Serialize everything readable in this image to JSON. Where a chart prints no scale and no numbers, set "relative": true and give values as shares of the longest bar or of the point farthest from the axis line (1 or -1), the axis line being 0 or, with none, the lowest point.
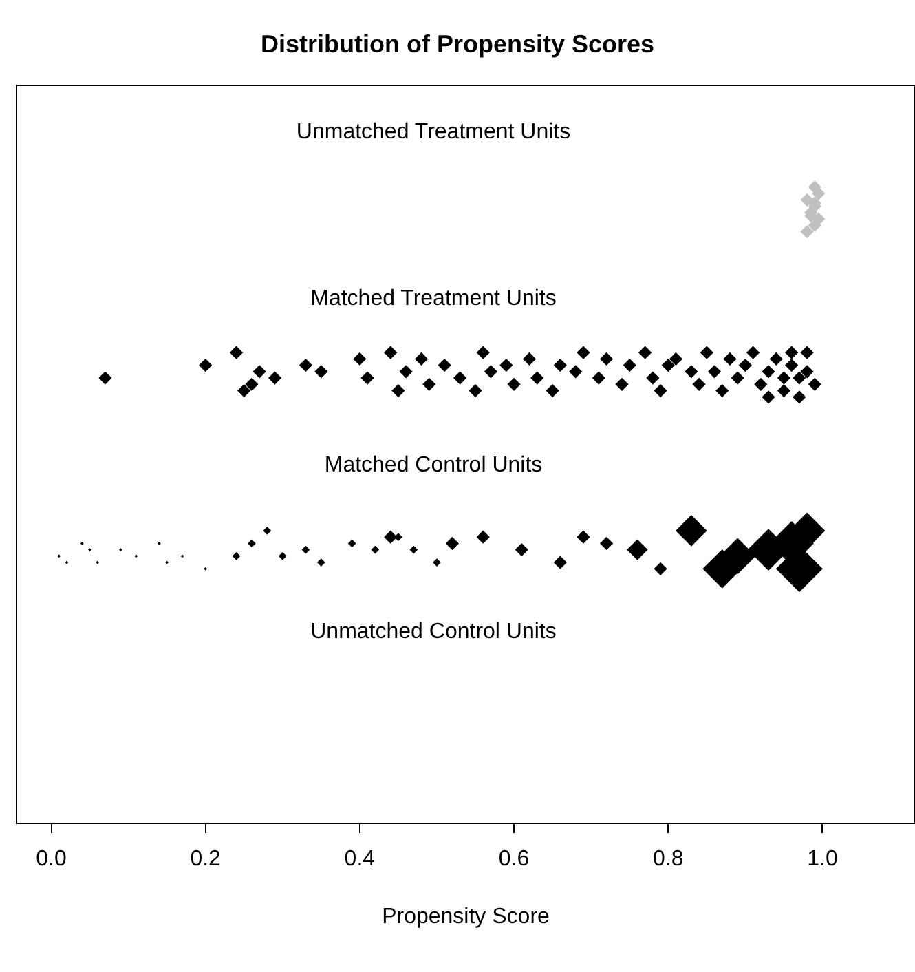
{
  "chart_data": {
    "type": "bubble",
    "title": "Distribution of Propensity Scores",
    "xlabel": "Propensity Score",
    "relative": true,
    "marker": "diamond",
    "grid": false,
    "xlim": [
      -0.045,
      1.12
    ],
    "xticks": [
      {
        "value": 0,
        "label": "0.0"
      },
      {
        "value": 0.2,
        "label": "0.2"
      },
      {
        "value": 0.4,
        "label": "0.4"
      },
      {
        "value": 0.6,
        "label": "0.6"
      },
      {
        "value": 0.8,
        "label": "0.8"
      },
      {
        "value": 1,
        "label": "1.0"
      }
    ],
    "annotations": [
      "Unmatched Treatment Units",
      "Matched Treatment Units",
      "Matched Control Units",
      "Unmatched Control Units"
    ],
    "series": [
      {
        "color": "#c0c0c0",
        "x": [
          0.98,
          0.99,
          0.995,
          0.985,
          0.99,
          0.98,
          0.995,
          0.99,
          0.985,
          0.99
        ],
        "values": [
          0.93,
          0.94,
          0.95,
          0.96,
          0.97,
          0.98,
          0.99,
          1.0,
          0.955,
          0.975
        ],
        "sizes": [
          0.08,
          0.08,
          0.08,
          0.08,
          0.08,
          0.08,
          0.08,
          0.08,
          0.08,
          0.08
        ]
      },
      {
        "color": "#000000",
        "x": [
          0.07,
          0.2,
          0.24,
          0.26,
          0.27,
          0.25,
          0.29,
          0.33,
          0.35,
          0.4,
          0.41,
          0.44,
          0.45,
          0.46,
          0.48,
          0.49,
          0.51,
          0.53,
          0.55,
          0.56,
          0.57,
          0.59,
          0.6,
          0.62,
          0.63,
          0.65,
          0.66,
          0.68,
          0.69,
          0.71,
          0.72,
          0.74,
          0.75,
          0.77,
          0.78,
          0.79,
          0.8,
          0.81,
          0.83,
          0.84,
          0.85,
          0.86,
          0.87,
          0.88,
          0.89,
          0.9,
          0.91,
          0.92,
          0.93,
          0.94,
          0.95,
          0.96,
          0.97,
          0.98,
          0.99,
          0.97,
          0.95,
          0.93,
          0.98,
          0.96
        ],
        "values": [
          0.7,
          0.72,
          0.74,
          0.69,
          0.71,
          0.68,
          0.7,
          0.72,
          0.71,
          0.73,
          0.7,
          0.74,
          0.68,
          0.71,
          0.73,
          0.69,
          0.72,
          0.7,
          0.68,
          0.74,
          0.71,
          0.72,
          0.69,
          0.73,
          0.7,
          0.68,
          0.72,
          0.71,
          0.74,
          0.7,
          0.73,
          0.69,
          0.72,
          0.74,
          0.7,
          0.68,
          0.72,
          0.73,
          0.71,
          0.69,
          0.74,
          0.71,
          0.68,
          0.73,
          0.7,
          0.72,
          0.74,
          0.69,
          0.71,
          0.73,
          0.68,
          0.72,
          0.7,
          0.74,
          0.69,
          0.67,
          0.7,
          0.67,
          0.71,
          0.74
        ],
        "sizes": [
          0.08,
          0.08,
          0.08,
          0.08,
          0.08,
          0.08,
          0.08,
          0.08,
          0.08,
          0.08,
          0.08,
          0.08,
          0.08,
          0.08,
          0.08,
          0.08,
          0.08,
          0.08,
          0.08,
          0.08,
          0.08,
          0.08,
          0.08,
          0.08,
          0.08,
          0.08,
          0.08,
          0.08,
          0.08,
          0.08,
          0.08,
          0.08,
          0.08,
          0.08,
          0.08,
          0.08,
          0.08,
          0.08,
          0.08,
          0.08,
          0.08,
          0.08,
          0.08,
          0.08,
          0.08,
          0.08,
          0.08,
          0.08,
          0.08,
          0.08,
          0.08,
          0.08,
          0.08,
          0.08,
          0.08,
          0.08,
          0.08,
          0.08,
          0.08,
          0.08
        ]
      },
      {
        "color": "#000000",
        "x": [
          0.01,
          0.02,
          0.04,
          0.05,
          0.06,
          0.09,
          0.11,
          0.14,
          0.15,
          0.17,
          0.2,
          0.24,
          0.26,
          0.28,
          0.3,
          0.33,
          0.35,
          0.39,
          0.42,
          0.45,
          0.47,
          0.5,
          0.44,
          0.52,
          0.56,
          0.61,
          0.66,
          0.69,
          0.72,
          0.79,
          0.76,
          0.83,
          0.87,
          0.89,
          0.93,
          0.96,
          0.97,
          0.98
        ],
        "values": [
          0.42,
          0.41,
          0.44,
          0.43,
          0.41,
          0.43,
          0.42,
          0.44,
          0.41,
          0.42,
          0.4,
          0.42,
          0.44,
          0.46,
          0.42,
          0.43,
          0.41,
          0.44,
          0.43,
          0.45,
          0.43,
          0.41,
          0.45,
          0.44,
          0.45,
          0.43,
          0.41,
          0.45,
          0.44,
          0.4,
          0.43,
          0.46,
          0.4,
          0.42,
          0.43,
          0.44,
          0.4,
          0.46
        ],
        "sizes": [
          0.005,
          0.005,
          0.005,
          0.005,
          0.005,
          0.005,
          0.005,
          0.005,
          0.005,
          0.005,
          0.005,
          0.03,
          0.03,
          0.03,
          0.03,
          0.03,
          0.03,
          0.03,
          0.03,
          0.03,
          0.03,
          0.03,
          0.08,
          0.08,
          0.08,
          0.08,
          0.08,
          0.08,
          0.08,
          0.08,
          0.2,
          0.45,
          0.7,
          0.6,
          0.8,
          0.9,
          1,
          0.6
        ]
      }
    ]
  }
}
